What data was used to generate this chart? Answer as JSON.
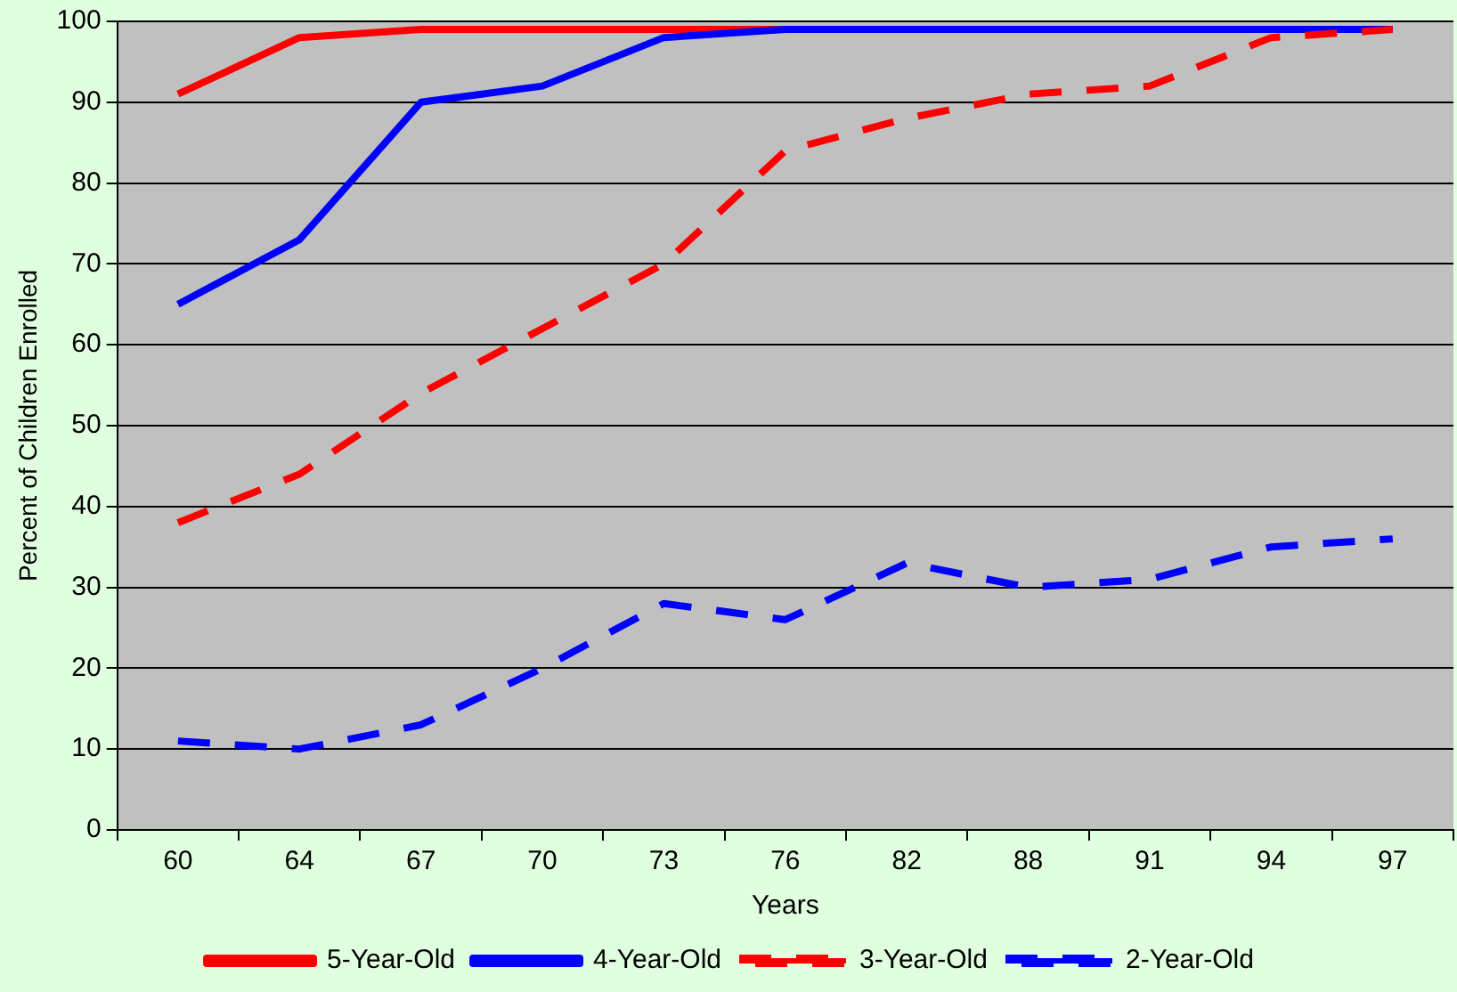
{
  "chart_data": {
    "type": "line",
    "xlabel": "Years",
    "ylabel": "Percent of Children Enrolled",
    "categories": [
      "60",
      "64",
      "67",
      "70",
      "73",
      "76",
      "82",
      "88",
      "91",
      "94",
      "97"
    ],
    "series": [
      {
        "name": "5-Year-Old",
        "color": "#ff0000",
        "line_style": "solid",
        "values": [
          91,
          98,
          99,
          99,
          99,
          99,
          null,
          null,
          null,
          null,
          null
        ]
      },
      {
        "name": "4-Year-Old",
        "color": "#0000ff",
        "line_style": "solid",
        "values": [
          65,
          73,
          90,
          92,
          98,
          99,
          99,
          99,
          99,
          99,
          99
        ]
      },
      {
        "name": "3-Year-Old",
        "color": "#ff0000",
        "line_style": "dashed",
        "values": [
          38,
          44,
          54,
          62,
          70,
          84,
          88,
          91,
          92,
          98,
          99
        ]
      },
      {
        "name": "2-Year-Old",
        "color": "#0000ff",
        "line_style": "dashed",
        "values": [
          11,
          10,
          13,
          20,
          28,
          26,
          33,
          30,
          31,
          35,
          36
        ]
      }
    ],
    "ylim": [
      0,
      100
    ],
    "yticks": [
      0,
      10,
      20,
      30,
      40,
      50,
      60,
      70,
      80,
      90,
      100
    ],
    "grid": "y",
    "legend": "bottom",
    "marker": "none"
  }
}
